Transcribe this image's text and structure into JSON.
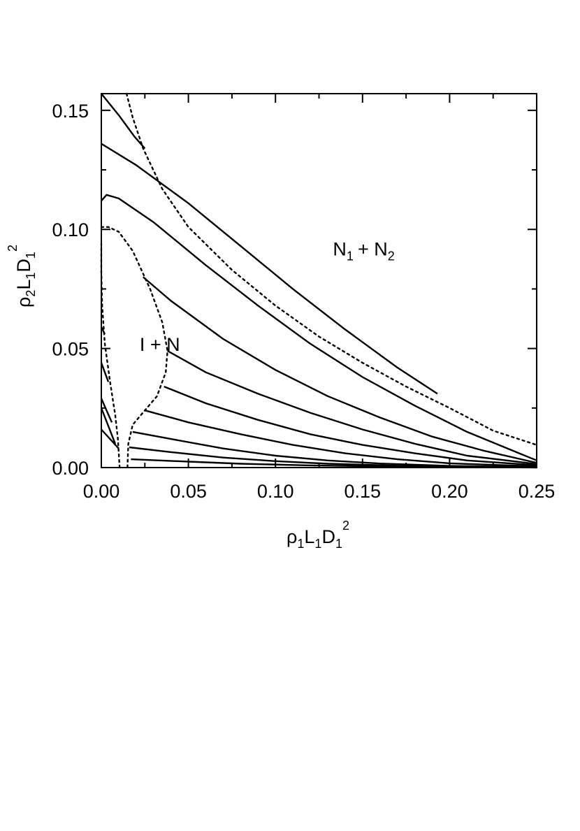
{
  "chart_data": {
    "type": "line",
    "title": "",
    "xlabel": {
      "base": [
        "ρ",
        "L",
        "D"
      ],
      "subs": [
        "1",
        "1",
        "1"
      ],
      "sup": "2"
    },
    "ylabel": {
      "base": [
        "ρ",
        "L",
        "D"
      ],
      "subs": [
        "2",
        "1",
        "1"
      ],
      "sup": "2"
    },
    "xlim": [
      0,
      0.25
    ],
    "ylim": [
      0,
      0.157
    ],
    "x_ticks": [
      "0.00",
      "0.05",
      "0.10",
      "0.15",
      "0.20",
      "0.25"
    ],
    "y_ticks": [
      "0.00",
      "0.05",
      "0.10",
      "0.15"
    ],
    "grid": false,
    "colors": {
      "line": "#000000",
      "background": "#ffffff"
    },
    "annotations": [
      {
        "name": "region-n1-n2",
        "base": [
          "N",
          "+ N"
        ],
        "subs": [
          "1",
          "2"
        ],
        "x": 0.133,
        "y": 0.089
      },
      {
        "name": "region-i-n",
        "text": "I + N",
        "x": 0.022,
        "y": 0.049
      }
    ],
    "phase_boundaries": [
      {
        "name": "upper-boundary",
        "style": "dotted",
        "points": [
          [
            0.0145,
            0.157
          ],
          [
            0.018,
            0.147
          ],
          [
            0.024,
            0.134
          ],
          [
            0.035,
            0.117
          ],
          [
            0.05,
            0.101
          ],
          [
            0.075,
            0.083
          ],
          [
            0.1,
            0.068
          ],
          [
            0.125,
            0.055
          ],
          [
            0.15,
            0.044
          ],
          [
            0.175,
            0.034
          ],
          [
            0.2,
            0.025
          ],
          [
            0.225,
            0.0155
          ],
          [
            0.25,
            0.0095
          ]
        ]
      },
      {
        "name": "lower-boundary-left-branch",
        "style": "dotted",
        "points": [
          [
            0.0105,
            0.0
          ],
          [
            0.0095,
            0.012
          ],
          [
            0.008,
            0.022
          ],
          [
            0.005,
            0.036
          ],
          [
            0.002,
            0.052
          ],
          [
            0.0005,
            0.068
          ],
          [
            0.0,
            0.082
          ],
          [
            0.0,
            0.094
          ]
        ]
      },
      {
        "name": "lower-boundary-right-branch",
        "style": "dotted",
        "points": [
          [
            0.0,
            0.101
          ],
          [
            0.004,
            0.101
          ],
          [
            0.01,
            0.099
          ],
          [
            0.018,
            0.091
          ],
          [
            0.028,
            0.075
          ],
          [
            0.035,
            0.061
          ],
          [
            0.038,
            0.049
          ],
          [
            0.037,
            0.04
          ],
          [
            0.032,
            0.03
          ],
          [
            0.025,
            0.024
          ],
          [
            0.018,
            0.018
          ],
          [
            0.0155,
            0.01
          ],
          [
            0.015,
            0.0
          ]
        ]
      }
    ],
    "series": [
      {
        "name": "",
        "points": [
          [
            0.0,
            0.157
          ],
          [
            0.01,
            0.148
          ],
          [
            0.019,
            0.139
          ],
          [
            0.025,
            0.134
          ]
        ]
      },
      {
        "name": "",
        "points": [
          [
            0.0,
            0.136
          ],
          [
            0.02,
            0.127
          ],
          [
            0.05,
            0.111
          ],
          [
            0.08,
            0.093
          ],
          [
            0.11,
            0.075
          ],
          [
            0.14,
            0.058
          ],
          [
            0.17,
            0.042
          ],
          [
            0.193,
            0.031
          ]
        ]
      },
      {
        "name": "",
        "points": [
          [
            0.0,
            0.112
          ],
          [
            0.003,
            0.1145
          ],
          [
            0.01,
            0.113
          ],
          [
            0.03,
            0.103
          ],
          [
            0.06,
            0.085
          ],
          [
            0.09,
            0.068
          ],
          [
            0.12,
            0.052
          ],
          [
            0.15,
            0.038
          ],
          [
            0.18,
            0.026
          ],
          [
            0.21,
            0.015
          ],
          [
            0.24,
            0.006
          ],
          [
            0.25,
            0.003
          ]
        ]
      },
      {
        "name": "",
        "points": [
          [
            0.024,
            0.08
          ],
          [
            0.04,
            0.07
          ],
          [
            0.07,
            0.054
          ],
          [
            0.1,
            0.041
          ],
          [
            0.13,
            0.03
          ],
          [
            0.16,
            0.021
          ],
          [
            0.19,
            0.013
          ],
          [
            0.22,
            0.007
          ],
          [
            0.25,
            0.002
          ]
        ]
      },
      {
        "name": "",
        "points": [
          [
            0.038,
            0.049
          ],
          [
            0.06,
            0.04
          ],
          [
            0.09,
            0.031
          ],
          [
            0.12,
            0.023
          ],
          [
            0.15,
            0.016
          ],
          [
            0.18,
            0.01
          ],
          [
            0.21,
            0.005
          ],
          [
            0.25,
            0.0015
          ]
        ]
      },
      {
        "name": "",
        "points": [
          [
            0.036,
            0.034
          ],
          [
            0.06,
            0.027
          ],
          [
            0.09,
            0.02
          ],
          [
            0.12,
            0.014
          ],
          [
            0.15,
            0.0095
          ],
          [
            0.18,
            0.006
          ],
          [
            0.21,
            0.003
          ],
          [
            0.25,
            0.001
          ]
        ]
      },
      {
        "name": "",
        "points": [
          [
            0.025,
            0.024
          ],
          [
            0.05,
            0.019
          ],
          [
            0.08,
            0.014
          ],
          [
            0.11,
            0.0095
          ],
          [
            0.14,
            0.006
          ],
          [
            0.17,
            0.0035
          ],
          [
            0.2,
            0.0018
          ],
          [
            0.25,
            0.0005
          ]
        ]
      },
      {
        "name": "",
        "points": [
          [
            0.018,
            0.015
          ],
          [
            0.04,
            0.012
          ],
          [
            0.07,
            0.008
          ],
          [
            0.1,
            0.005
          ],
          [
            0.13,
            0.003
          ],
          [
            0.16,
            0.0017
          ],
          [
            0.2,
            0.0007
          ],
          [
            0.25,
            0.0002
          ]
        ]
      },
      {
        "name": "",
        "points": [
          [
            0.016,
            0.0085
          ],
          [
            0.04,
            0.0065
          ],
          [
            0.07,
            0.0042
          ],
          [
            0.1,
            0.0027
          ],
          [
            0.13,
            0.0016
          ],
          [
            0.17,
            0.0008
          ],
          [
            0.25,
            0.0001
          ]
        ]
      },
      {
        "name": "",
        "points": [
          [
            0.017,
            0.0035
          ],
          [
            0.05,
            0.0025
          ],
          [
            0.08,
            0.0016
          ],
          [
            0.12,
            0.0009
          ],
          [
            0.17,
            0.0004
          ],
          [
            0.25,
            0.0
          ]
        ]
      },
      {
        "name": "",
        "points": [
          [
            0.0,
            0.059
          ],
          [
            0.002,
            0.056
          ]
        ]
      },
      {
        "name": "",
        "points": [
          [
            0.0,
            0.044
          ],
          [
            0.004,
            0.036
          ]
        ]
      },
      {
        "name": "",
        "points": [
          [
            0.0,
            0.029
          ],
          [
            0.006,
            0.019
          ]
        ]
      },
      {
        "name": "",
        "points": [
          [
            0.0,
            0.025
          ],
          [
            0.008,
            0.01
          ]
        ]
      },
      {
        "name": "",
        "points": [
          [
            0.0,
            0.016
          ],
          [
            0.01,
            0.008
          ]
        ]
      }
    ]
  }
}
